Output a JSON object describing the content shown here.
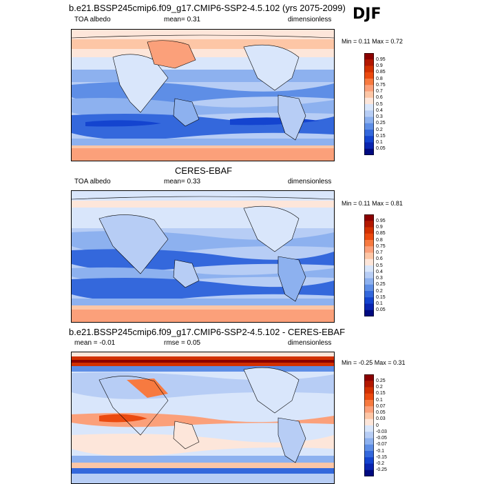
{
  "season": "DJF",
  "panels": [
    {
      "title": "b.e21.BSSP245cmip6.f09_g17.CMIP6-SSP2-4.5.102 (yrs 2075-2099)",
      "left_label": "TOA albedo",
      "mid_label": "mean=   0.31",
      "right_label": "dimensionless",
      "minmax": "Min =   0.11 Max =   0.72",
      "kind": "abs"
    },
    {
      "title": "CERES-EBAF",
      "left_label": "TOA albedo",
      "mid_label": "mean=   0.33",
      "right_label": "dimensionless",
      "minmax": "Min =   0.11 Max =   0.81",
      "kind": "abs"
    },
    {
      "title": "b.e21.BSSP245cmip6.f09_g17.CMIP6-SSP2-4.5.102 - CERES-EBAF",
      "left_label": "mean =  -0.01",
      "mid_label": "rmse =  0.05",
      "right_label": "dimensionless",
      "minmax": "Min =  -0.25 Max =   0.31",
      "kind": "diff"
    }
  ],
  "colorbars": {
    "abs": {
      "labels": [
        "0.95",
        "0.9",
        "0.85",
        "0.8",
        "0.75",
        "0.7",
        "0.6",
        "0.5",
        "0.4",
        "0.3",
        "0.25",
        "0.2",
        "0.15",
        "0.1",
        "0.05"
      ],
      "colors": [
        "#8b0000",
        "#b31800",
        "#d23000",
        "#eb4a10",
        "#f77a40",
        "#fba07a",
        "#fdc6a6",
        "#fde6da",
        "#d9e6fb",
        "#b7cdf5",
        "#8db1ef",
        "#5e8ee6",
        "#3468dc",
        "#1444cf",
        "#0a25b0",
        "#000a80"
      ]
    },
    "diff": {
      "labels": [
        "0.25",
        "0.2",
        "0.15",
        "0.1",
        "0.07",
        "0.05",
        "0.03",
        "0",
        "-0.03",
        "-0.05",
        "-0.07",
        "-0.1",
        "-0.15",
        "-0.2",
        "-0.25"
      ],
      "colors": [
        "#8b0000",
        "#b31800",
        "#d23000",
        "#eb4a10",
        "#f77a40",
        "#fba07a",
        "#fdc6a6",
        "#fde6da",
        "#d9e6fb",
        "#b7cdf5",
        "#8db1ef",
        "#5e8ee6",
        "#3468dc",
        "#1444cf",
        "#0a25b0",
        "#000a80"
      ]
    }
  }
}
